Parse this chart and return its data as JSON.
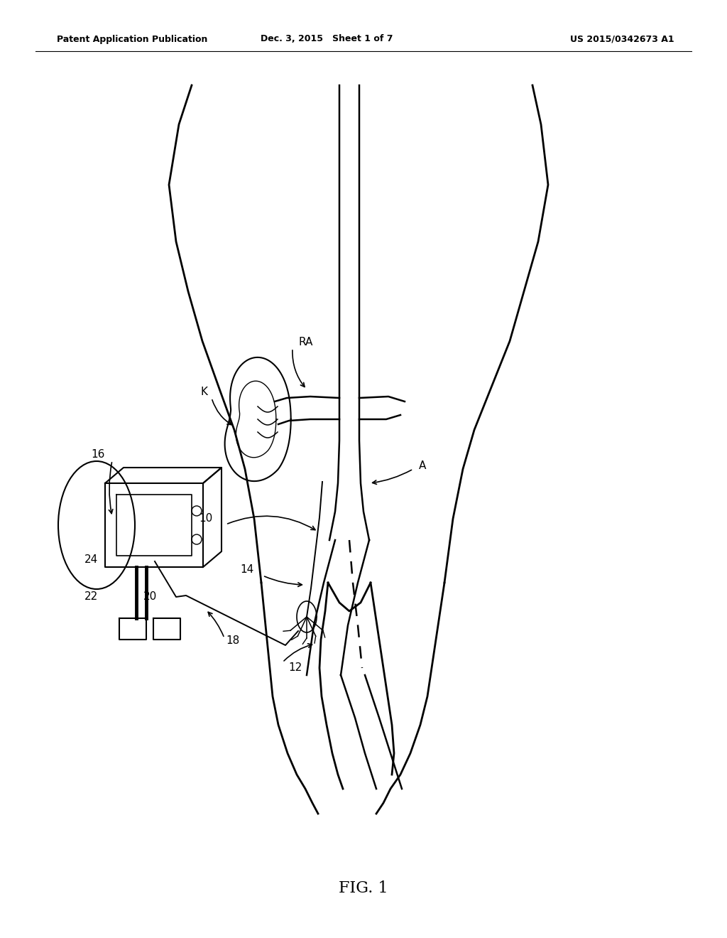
{
  "bg_color": "#ffffff",
  "line_color": "#000000",
  "header_left": "Patent Application Publication",
  "header_mid": "Dec. 3, 2015   Sheet 1 of 7",
  "header_right": "US 2015/0342673 A1",
  "figure_label": "FIG. 1"
}
